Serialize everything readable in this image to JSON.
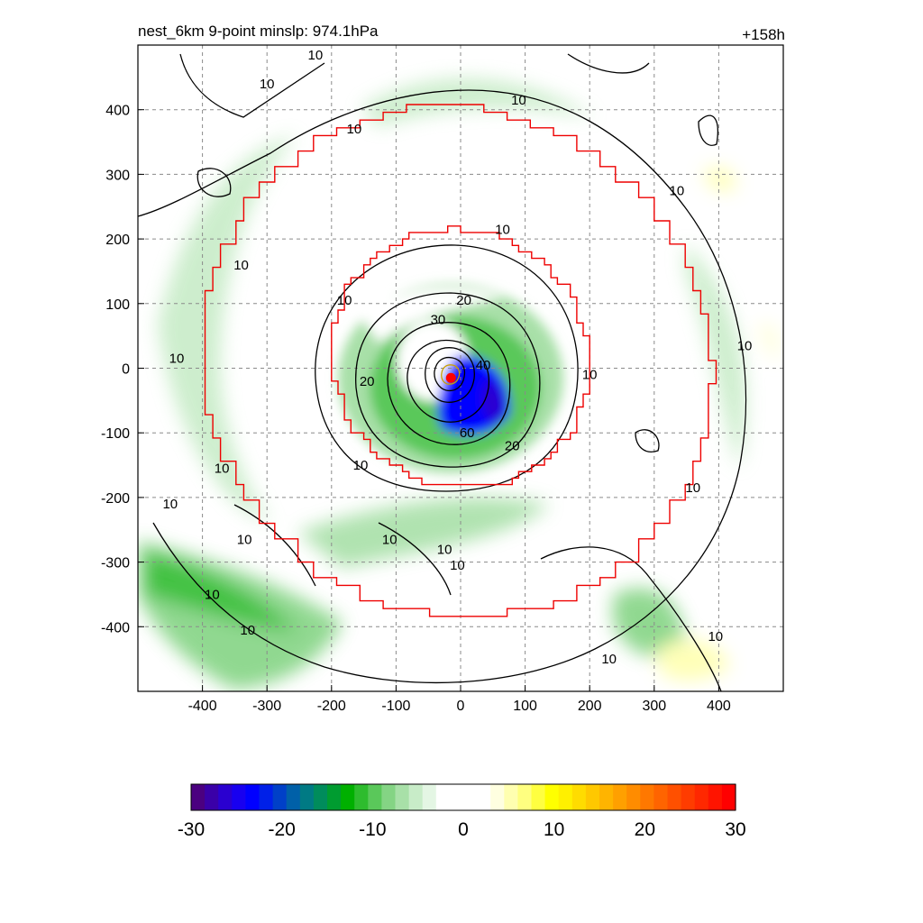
{
  "chart_data": {
    "type": "heatmap",
    "title_left": "nest_6km  9-point minslp: 974.1hPa",
    "title_right": "+158h",
    "xlim": [
      -500,
      500
    ],
    "ylim": [
      -500,
      500
    ],
    "x_ticks": [
      -400,
      -300,
      -200,
      -100,
      0,
      100,
      200,
      300,
      400
    ],
    "y_ticks": [
      400,
      300,
      200,
      100,
      0,
      -100,
      -200,
      -300,
      -400
    ],
    "grid": true,
    "center_marker": {
      "x": -15,
      "y": -15
    },
    "colorbar": {
      "min": -30,
      "max": 30,
      "step": 1.5,
      "ticks": [
        -30,
        -20,
        -10,
        0,
        10,
        20,
        30
      ],
      "colors": [
        "#4b0080",
        "#3a00a8",
        "#2a00d0",
        "#1800f0",
        "#0000ff",
        "#0020e8",
        "#0040c8",
        "#0060a8",
        "#007a84",
        "#008c5c",
        "#009c30",
        "#00b000",
        "#2ebc2e",
        "#5ac85a",
        "#84d484",
        "#a8e0a8",
        "#c8ecc8",
        "#e4f6e4",
        "#ffffff",
        "#ffffff",
        "#ffffff",
        "#ffffff",
        "#ffffe0",
        "#ffffb0",
        "#ffff80",
        "#ffff40",
        "#ffff00",
        "#fff000",
        "#ffdc00",
        "#ffc800",
        "#ffb400",
        "#ffa000",
        "#ff8c00",
        "#ff7800",
        "#ff6400",
        "#ff5000",
        "#ff3c00",
        "#ff2800",
        "#ff1400",
        "#ff0000"
      ]
    },
    "contour_labels": [
      {
        "text": "10",
        "x": -225,
        "y": 485
      },
      {
        "text": "10",
        "x": -300,
        "y": 440
      },
      {
        "text": "10",
        "x": 90,
        "y": 415
      },
      {
        "text": "10",
        "x": -165,
        "y": 370
      },
      {
        "text": "10",
        "x": 335,
        "y": 275
      },
      {
        "text": "10",
        "x": 65,
        "y": 215
      },
      {
        "text": "10",
        "x": -340,
        "y": 160
      },
      {
        "text": "10",
        "x": -180,
        "y": 105
      },
      {
        "text": "20",
        "x": 5,
        "y": 105
      },
      {
        "text": "30",
        "x": -35,
        "y": 75
      },
      {
        "text": "10",
        "x": 440,
        "y": 35
      },
      {
        "text": "10",
        "x": -440,
        "y": 15
      },
      {
        "text": "40",
        "x": 35,
        "y": 5
      },
      {
        "text": "20",
        "x": -145,
        "y": -20
      },
      {
        "text": "10",
        "x": 200,
        "y": -10
      },
      {
        "text": "60",
        "x": 10,
        "y": -100
      },
      {
        "text": "20",
        "x": 80,
        "y": -120
      },
      {
        "text": "10",
        "x": -155,
        "y": -150
      },
      {
        "text": "10",
        "x": -370,
        "y": -155
      },
      {
        "text": "10",
        "x": 360,
        "y": -185
      },
      {
        "text": "10",
        "x": -450,
        "y": -210
      },
      {
        "text": "10",
        "x": -335,
        "y": -265
      },
      {
        "text": "10",
        "x": -110,
        "y": -265
      },
      {
        "text": "10",
        "x": -25,
        "y": -280
      },
      {
        "text": "10",
        "x": -5,
        "y": -305
      },
      {
        "text": "10",
        "x": -385,
        "y": -350
      },
      {
        "text": "10",
        "x": -330,
        "y": -405
      },
      {
        "text": "10",
        "x": 395,
        "y": -415
      },
      {
        "text": "10",
        "x": 230,
        "y": -450
      }
    ]
  }
}
